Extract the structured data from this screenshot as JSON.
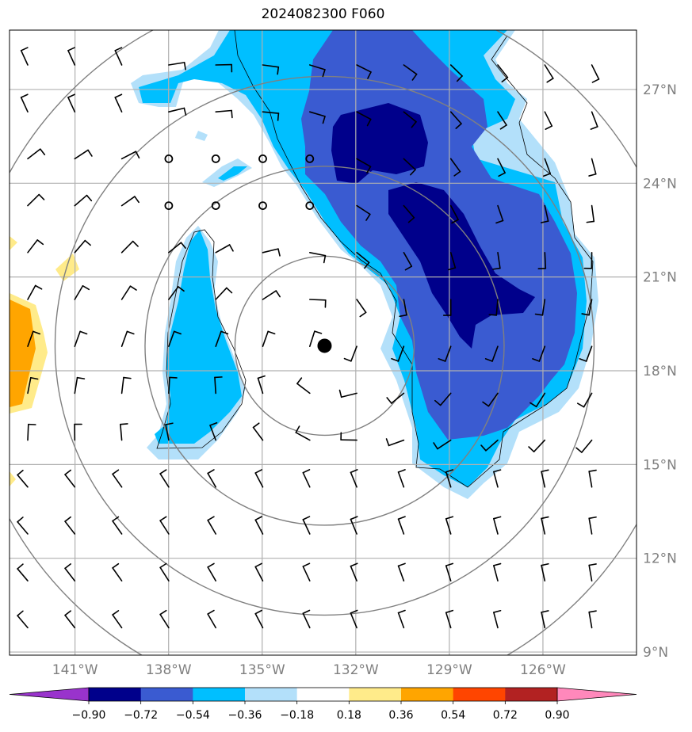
{
  "title": "2024082300 F060",
  "map": {
    "lat_ticks": [
      {
        "value": 27,
        "label": "27°N"
      },
      {
        "value": 24,
        "label": "24°N"
      },
      {
        "value": 21,
        "label": "21°N"
      },
      {
        "value": 18,
        "label": "18°N"
      },
      {
        "value": 15,
        "label": "15°N"
      },
      {
        "value": 12,
        "label": "12°N"
      },
      {
        "value": 9,
        "label": "9°N"
      }
    ],
    "lon_ticks": [
      {
        "value": -141,
        "label": "141°W"
      },
      {
        "value": -138,
        "label": "138°W"
      },
      {
        "value": -135,
        "label": "135°W"
      },
      {
        "value": -132,
        "label": "132°W"
      },
      {
        "value": -129,
        "label": "129°W"
      },
      {
        "value": -126,
        "label": "126°W"
      }
    ],
    "lon_range": [
      -143.1,
      -123.0
    ],
    "lat_range": [
      8.9,
      28.9
    ],
    "storm_center": {
      "lon": -133.0,
      "lat": 18.8
    },
    "range_rings_count": 4,
    "gridlines": true
  },
  "colorbar": {
    "labels": [
      "−0.90",
      "−0.72",
      "−0.54",
      "−0.36",
      "−0.18",
      "0.18",
      "0.36",
      "0.54",
      "0.72",
      "0.90"
    ],
    "colors": [
      "#9933cc",
      "#00008b",
      "#3a5bd1",
      "#00bfff",
      "#b3e0fa",
      "#ffffff",
      "#ffeb8a",
      "#ffa500",
      "#ff4500",
      "#b22222",
      "#ff88bb"
    ],
    "extend": "both"
  }
}
